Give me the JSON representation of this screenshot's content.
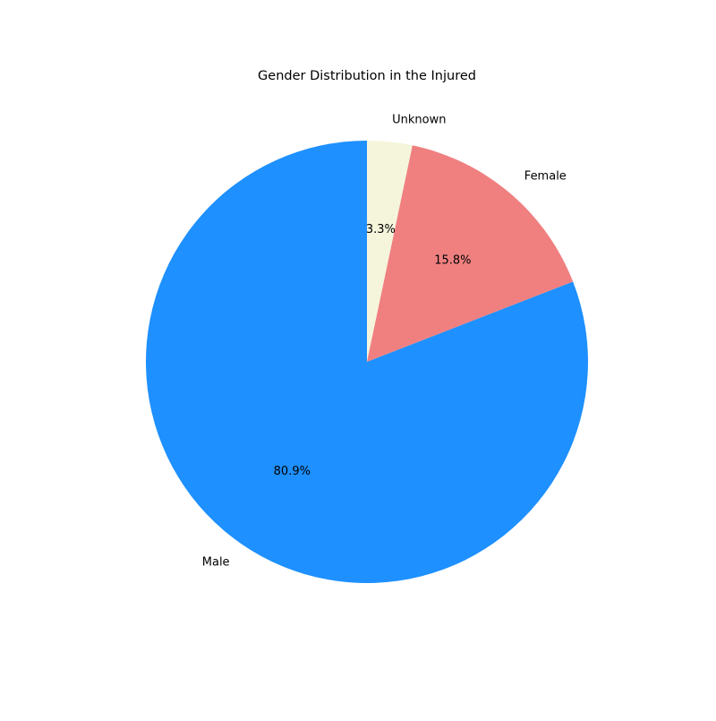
{
  "chart_data": {
    "type": "pie",
    "title": "Gender Distribution in the Injured",
    "start_angle_deg": 90,
    "direction": "clockwise",
    "slices": [
      {
        "label": "Unknown",
        "value": 3.3,
        "pct_label": "3.3%",
        "color": "#f5f5dc"
      },
      {
        "label": "Female",
        "value": 15.8,
        "pct_label": "15.8%",
        "color": "#f08080"
      },
      {
        "label": "Male",
        "value": 80.9,
        "pct_label": "80.9%",
        "color": "#1e90ff"
      }
    ],
    "legend": "none"
  }
}
